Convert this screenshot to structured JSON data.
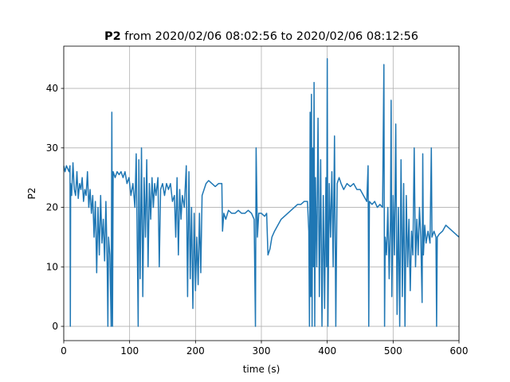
{
  "chart_data": {
    "type": "line",
    "title": {
      "bold": "P2",
      "rest": "from 2020/02/06 08:02:56 to 2020/02/06 08:12:56"
    },
    "xlabel": "time (s)",
    "ylabel": "P2",
    "xlim": [
      0,
      600
    ],
    "ylim": [
      -2.4,
      47.1
    ],
    "xticks": [
      0,
      100,
      200,
      300,
      400,
      500,
      600
    ],
    "yticks": [
      0,
      10,
      20,
      30,
      40
    ],
    "grid": true,
    "x": [
      0,
      2,
      4,
      6,
      8,
      9.5,
      10,
      10.5,
      12,
      14,
      16,
      18,
      20,
      22,
      24,
      26,
      28,
      30,
      32,
      34,
      36,
      38,
      40,
      42,
      44,
      46,
      48,
      50,
      52,
      54,
      56,
      58,
      60,
      62,
      64,
      66,
      67,
      68,
      70,
      72,
      73,
      74,
      75,
      78,
      81,
      84,
      87,
      90,
      93,
      96,
      99,
      102,
      105,
      108,
      110,
      112,
      113,
      114,
      116,
      118,
      120,
      122,
      124,
      126,
      128,
      130,
      132,
      134,
      136,
      138,
      140,
      143,
      145,
      147,
      150,
      153,
      156,
      159,
      162,
      165,
      168,
      170,
      172,
      174,
      176,
      178,
      180,
      183,
      186,
      188,
      190,
      192,
      194,
      196,
      198,
      200,
      202,
      204,
      206,
      208,
      210,
      213,
      216,
      220,
      225,
      230,
      235,
      240,
      241,
      243,
      246,
      250,
      255,
      260,
      265,
      270,
      275,
      280,
      285,
      289,
      291,
      292,
      294,
      296,
      300,
      305,
      308,
      310,
      313,
      316,
      320,
      325,
      330,
      335,
      340,
      345,
      350,
      355,
      360,
      365,
      370,
      372,
      373,
      374,
      375,
      376,
      377,
      378,
      379,
      380,
      381,
      382,
      384,
      386,
      388,
      390,
      392,
      394,
      396,
      398,
      399,
      400,
      401,
      403,
      405,
      407,
      409,
      411,
      413,
      415,
      418,
      421,
      425,
      430,
      435,
      440,
      445,
      450,
      455,
      460,
      462,
      463,
      464,
      468,
      472,
      476,
      480,
      484,
      486,
      487,
      488,
      490,
      492,
      494,
      496,
      497,
      498,
      500,
      502,
      504,
      506,
      508,
      510,
      512,
      514,
      516,
      518,
      520,
      522,
      524,
      526,
      528,
      530,
      532,
      534,
      536,
      538,
      540,
      542,
      544,
      545,
      546,
      548,
      550,
      553,
      556,
      558,
      559,
      562,
      565,
      566,
      567,
      570,
      575,
      580,
      585,
      590,
      595,
      600
    ],
    "series": [
      {
        "name": "P2",
        "color": "#1f77b4",
        "values": [
          27,
          26,
          27,
          26.5,
          26,
          27,
          0,
          24,
          22,
          27.5,
          23,
          22,
          26,
          21.5,
          24,
          23,
          25,
          21,
          23,
          22,
          26,
          20,
          23,
          19,
          22,
          15,
          21,
          9,
          20,
          12,
          22,
          14,
          18,
          11,
          21,
          10,
          0,
          15,
          12,
          0,
          36,
          0,
          26,
          25,
          26,
          25.5,
          26,
          25,
          26,
          24,
          25,
          22,
          24,
          20,
          29,
          10,
          0,
          28,
          8,
          30,
          5,
          25,
          15,
          28,
          10,
          24,
          18,
          25,
          20,
          24,
          22,
          25,
          10,
          23,
          24,
          22,
          24,
          23,
          24,
          21,
          22,
          15,
          25,
          12,
          23,
          18,
          22,
          20,
          27,
          5,
          26,
          8,
          20,
          3,
          19,
          6,
          15,
          7,
          19,
          9,
          22,
          23,
          24,
          24.5,
          24,
          23.5,
          24,
          24,
          16,
          19,
          18,
          19.5,
          19,
          19,
          19.5,
          19,
          19,
          19.5,
          19,
          18,
          0,
          30,
          15,
          19,
          19,
          18.5,
          19,
          12,
          13,
          15,
          16,
          17,
          18,
          18.5,
          19,
          19.5,
          20,
          20.5,
          20.5,
          21,
          21,
          16,
          0,
          36,
          5,
          39,
          0,
          30,
          10,
          41,
          0,
          25,
          10,
          35,
          5,
          28,
          0,
          22,
          3,
          25,
          10,
          45,
          0,
          24,
          15,
          26,
          10,
          32,
          0,
          24,
          25,
          24,
          23,
          24,
          23.5,
          24,
          23,
          23,
          22,
          21,
          27,
          0,
          21,
          20.5,
          21,
          20,
          20.5,
          20,
          44,
          0,
          15,
          12,
          20,
          8,
          18,
          38,
          5,
          22,
          12,
          34,
          2,
          20,
          0,
          28,
          5,
          24,
          0,
          22,
          10,
          18,
          6,
          16,
          12,
          30,
          10,
          18,
          12,
          20,
          15,
          4,
          29,
          12,
          17,
          14,
          16,
          14,
          30,
          15,
          16,
          15,
          0,
          15,
          15.5,
          16,
          17,
          16.5,
          16,
          15.5,
          15
        ]
      }
    ]
  }
}
